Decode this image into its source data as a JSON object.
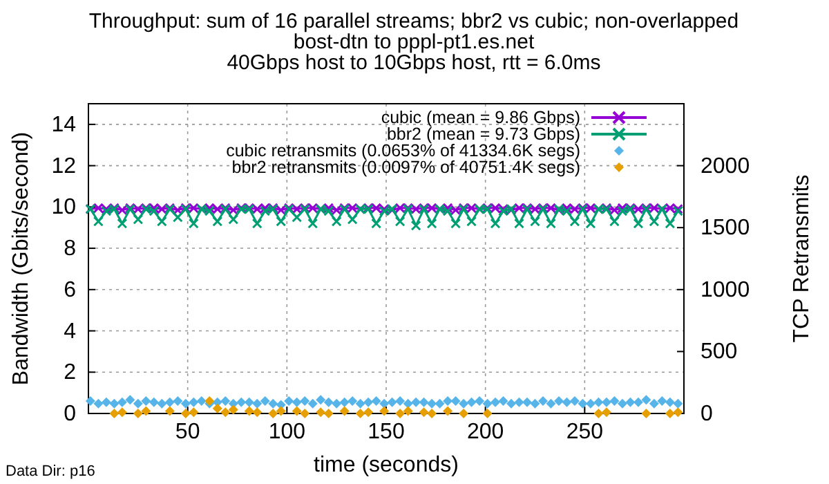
{
  "chart_data": {
    "type": "line",
    "title": "Throughput: sum of 16 parallel streams; bbr2 vs cubic; non-overlapped\nbost-dtn to pppl-pt1.es.net\n40Gbps host to 10Gbps host, rtt = 6.0ms",
    "xlabel": "time (seconds)",
    "ylabel": "Bandwidth (Gbits/second)",
    "y2label": "TCP Retransmits",
    "annotations": [
      "Data Dir: p16"
    ],
    "x": [
      1,
      5,
      9,
      13,
      17,
      21,
      25,
      29,
      33,
      37,
      41,
      45,
      49,
      53,
      57,
      61,
      65,
      69,
      73,
      77,
      81,
      85,
      89,
      93,
      97,
      101,
      105,
      109,
      113,
      117,
      121,
      125,
      129,
      133,
      137,
      141,
      145,
      149,
      153,
      157,
      161,
      165,
      169,
      173,
      177,
      181,
      185,
      189,
      193,
      197,
      201,
      205,
      209,
      213,
      217,
      221,
      225,
      229,
      233,
      237,
      241,
      245,
      249,
      253,
      257,
      261,
      265,
      269,
      273,
      277,
      281,
      285,
      289,
      293,
      297
    ],
    "xlim": [
      0,
      300
    ],
    "xticks": [
      50,
      100,
      150,
      200,
      250
    ],
    "ylim": [
      0,
      15
    ],
    "yticks": [
      0,
      2,
      4,
      6,
      8,
      10,
      12,
      14
    ],
    "y2lim": [
      0,
      2500
    ],
    "y2ticks": [
      0,
      500,
      1000,
      1500,
      2000
    ],
    "grid": true,
    "legend": "top right",
    "series": [
      {
        "name": "cubic (mean = 9.86 Gbps)",
        "color": "#9400d3",
        "marker": "cross",
        "values": [
          9.9,
          9.95,
          9.9,
          9.95,
          9.85,
          9.95,
          9.9,
          9.95,
          9.95,
          9.9,
          9.95,
          9.85,
          9.95,
          9.95,
          9.9,
          9.95,
          9.9,
          9.95,
          9.85,
          9.95,
          9.95,
          9.9,
          9.95,
          9.95,
          9.85,
          9.95,
          9.9,
          9.95,
          9.95,
          9.9,
          9.95,
          9.85,
          9.95,
          9.95,
          9.9,
          9.95,
          9.95,
          9.9,
          9.85,
          9.95,
          9.95,
          9.9,
          9.95,
          9.95,
          9.9,
          9.95,
          9.85,
          9.95,
          9.95,
          9.9,
          9.95,
          9.95,
          9.9,
          9.85,
          9.95,
          9.95,
          9.9,
          9.95,
          9.95,
          9.85,
          9.95,
          9.9,
          9.95,
          9.95,
          9.9,
          9.95,
          9.85,
          9.95,
          9.95,
          9.9,
          9.95,
          9.95,
          9.9,
          9.95,
          9.9
        ]
      },
      {
        "name": "bbr2 (mean = 9.73 Gbps)",
        "color": "#009e73",
        "marker": "cross",
        "values": [
          9.9,
          9.3,
          9.8,
          9.9,
          9.2,
          9.9,
          9.4,
          9.9,
          9.8,
          9.3,
          9.9,
          9.5,
          9.9,
          9.2,
          9.9,
          9.8,
          9.3,
          9.9,
          9.4,
          9.9,
          9.9,
          9.2,
          9.8,
          9.9,
          9.3,
          9.9,
          9.5,
          9.9,
          9.2,
          9.9,
          9.8,
          9.3,
          9.9,
          9.4,
          9.9,
          9.9,
          9.2,
          9.8,
          9.9,
          9.3,
          9.9,
          9.1,
          9.9,
          9.2,
          9.9,
          9.8,
          9.2,
          9.9,
          9.3,
          9.9,
          9.9,
          9.2,
          9.8,
          9.9,
          9.2,
          9.9,
          9.3,
          9.9,
          9.2,
          9.9,
          9.8,
          9.3,
          9.9,
          9.2,
          9.9,
          9.9,
          9.3,
          9.8,
          9.9,
          9.2,
          9.9,
          9.3,
          9.9,
          9.2,
          9.8
        ]
      },
      {
        "name": "cubic retransmits (0.0653% of 41334.6K segs)",
        "color": "#56b4e9",
        "type": "scatter",
        "axis": "y2",
        "marker": "diamond",
        "values": [
          100,
          80,
          90,
          80,
          90,
          110,
          80,
          100,
          90,
          80,
          90,
          100,
          80,
          90,
          100,
          80,
          90,
          100,
          80,
          90,
          90,
          80,
          100,
          80,
          70,
          100,
          90,
          100,
          80,
          110,
          90,
          80,
          90,
          100,
          80,
          90,
          100,
          80,
          90,
          100,
          80,
          90,
          90,
          80,
          80,
          100,
          100,
          80,
          90,
          100,
          80,
          90,
          100,
          80,
          90,
          90,
          80,
          100,
          80,
          100,
          90,
          100,
          80,
          80,
          90,
          90,
          100,
          80,
          90,
          90,
          110,
          80,
          100,
          90,
          80
        ]
      },
      {
        "name": "bbr2 retransmits (0.0097% of 40751.4K segs)",
        "color": "#e69f00",
        "type": "scatter",
        "axis": "y2",
        "marker": "diamond",
        "values": [
          null,
          null,
          null,
          0,
          10,
          null,
          0,
          20,
          null,
          null,
          20,
          null,
          0,
          10,
          null,
          100,
          40,
          10,
          30,
          null,
          20,
          10,
          null,
          0,
          20,
          null,
          20,
          0,
          null,
          10,
          0,
          null,
          20,
          null,
          0,
          10,
          null,
          20,
          null,
          0,
          20,
          null,
          10,
          0,
          null,
          20,
          null,
          0,
          null,
          null,
          0,
          null,
          null,
          null,
          null,
          null,
          null,
          null,
          null,
          null,
          null,
          null,
          null,
          null,
          0,
          10,
          null,
          null,
          null,
          null,
          0,
          null,
          null,
          0,
          10
        ]
      }
    ]
  }
}
